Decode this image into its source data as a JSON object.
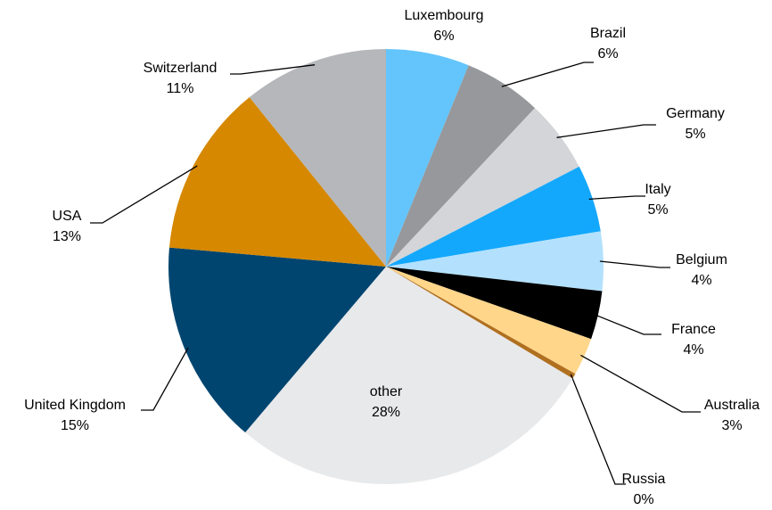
{
  "chart_data": {
    "type": "pie",
    "categories": [
      "Luxembourg",
      "Brazil",
      "Germany",
      "Italy",
      "Belgium",
      "France",
      "Australia",
      "Russia",
      "other",
      "United Kingdom",
      "USA",
      "Switzerland"
    ],
    "values": [
      6.2,
      5.8,
      5.4,
      5.0,
      4.4,
      3.6,
      2.8,
      0.4,
      27.6,
      15.2,
      12.8,
      10.8
    ],
    "value_labels": [
      "6%",
      "6%",
      "5%",
      "5%",
      "4%",
      "4%",
      "3%",
      "0%",
      "28%",
      "15%",
      "13%",
      "11%"
    ],
    "colors": [
      "#63c5fb",
      "#97989b",
      "#d3d5d8",
      "#14a8fc",
      "#b3e1fd",
      "#000000",
      "#ffd68a",
      "#b07020",
      "#e8e9eb",
      "#004570",
      "#d68800",
      "#b5b7bb"
    ]
  }
}
